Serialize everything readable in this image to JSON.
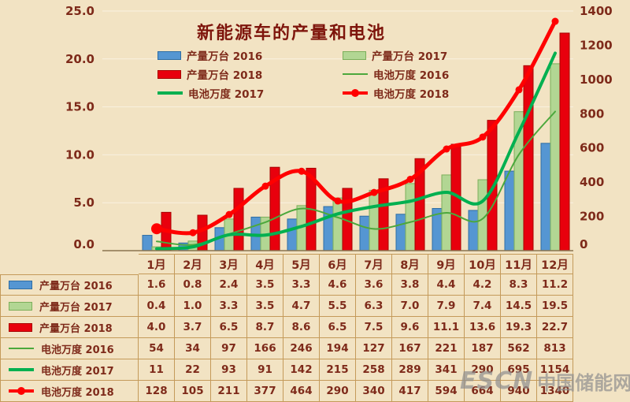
{
  "title": "新能源车的产量和电池",
  "axes": {
    "left_ticks": [
      "0.0",
      "5.0",
      "10.0",
      "15.0",
      "20.0",
      "25.0"
    ],
    "right_ticks": [
      "0",
      "200",
      "400",
      "600",
      "800",
      "1000",
      "1200",
      "1400"
    ]
  },
  "chart_data": {
    "type": "combo-bar-line",
    "title": "新能源车的产量和电池",
    "categories": [
      "1月",
      "2月",
      "3月",
      "4月",
      "5月",
      "6月",
      "7月",
      "8月",
      "9月",
      "10月",
      "11月",
      "12月"
    ],
    "left_ylim": [
      0,
      25
    ],
    "right_ylim": [
      0,
      1400
    ],
    "grid": "faint horizontal lines every 5 units",
    "legend_position": "top, two columns under title",
    "series": [
      {
        "name": "产量万台 2016",
        "type": "bar",
        "axis": "left",
        "color": "#5596D2",
        "border": "#2E6DA4",
        "swatch": "bar-blue",
        "values": [
          1.6,
          0.8,
          2.4,
          3.5,
          3.3,
          4.6,
          3.6,
          3.8,
          4.4,
          4.2,
          8.3,
          11.2
        ]
      },
      {
        "name": "产量万台 2017",
        "type": "bar",
        "axis": "left",
        "color": "#B2D693",
        "border": "#7CAF5B",
        "swatch": "bar-green",
        "values": [
          0.4,
          1.0,
          3.3,
          3.5,
          4.7,
          5.5,
          6.3,
          7.0,
          7.9,
          7.4,
          14.5,
          19.5
        ]
      },
      {
        "name": "产量万台 2018",
        "type": "bar",
        "axis": "left",
        "color": "#E8000D",
        "border": "#A80000",
        "swatch": "bar-red",
        "values": [
          4.0,
          3.7,
          6.5,
          8.7,
          8.6,
          6.5,
          7.5,
          9.6,
          11.1,
          13.6,
          19.3,
          22.7
        ]
      },
      {
        "name": "电池万度 2016",
        "type": "line",
        "axis": "right",
        "color": "#4CA83C",
        "width": 2,
        "swatch": "line-thin-green",
        "values": [
          54,
          34,
          97,
          166,
          246,
          194,
          127,
          167,
          221,
          187,
          562,
          813
        ]
      },
      {
        "name": "电池万度 2017",
        "type": "line",
        "axis": "right",
        "color": "#00B050",
        "width": 4,
        "swatch": "line-thick-green",
        "values": [
          11,
          22,
          93,
          91,
          142,
          215,
          258,
          289,
          341,
          290,
          695,
          1154
        ]
      },
      {
        "name": "电池万度 2018",
        "type": "line",
        "axis": "right",
        "color": "#FF0000",
        "width": 5,
        "marker": true,
        "swatch": "line-red-marker",
        "values": [
          128,
          105,
          211,
          377,
          464,
          290,
          340,
          417,
          594,
          664,
          940,
          1340
        ]
      }
    ]
  },
  "watermark": {
    "logo": "ESCN",
    "text": "中国储能网"
  },
  "colors": {
    "background": "#F2E3C3",
    "axis_text": "#7E2A1A",
    "table_grid": "#C49A5A",
    "title_text": "#7E150C",
    "watermark_gray": "#8F8F8F"
  }
}
